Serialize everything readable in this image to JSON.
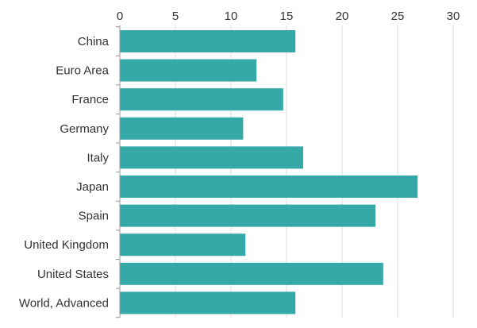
{
  "chart_data": {
    "type": "bar",
    "orientation": "horizontal",
    "title": "",
    "xlabel": "",
    "ylabel": "",
    "xlim": [
      0,
      30
    ],
    "x_ticks": [
      0,
      5,
      10,
      15,
      20,
      25,
      30
    ],
    "x_axis_position": "top",
    "grid": true,
    "bar_color": "#35a8a8",
    "categories": [
      "China",
      "Euro Area",
      "France",
      "Germany",
      "Italy",
      "Japan",
      "Spain",
      "United Kingdom",
      "United States",
      "World, Advanced"
    ],
    "values": [
      15.8,
      12.3,
      14.7,
      11.1,
      16.5,
      26.8,
      23.0,
      11.3,
      23.7,
      15.8
    ]
  }
}
